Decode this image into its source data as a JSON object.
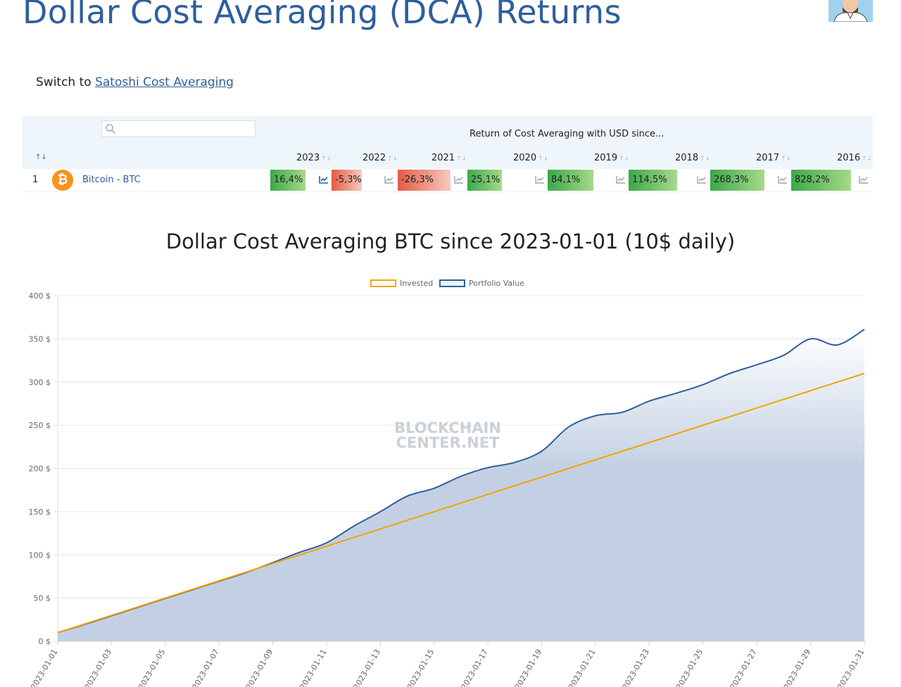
{
  "header": {
    "title": "Dollar Cost Averaging (DCA) Returns"
  },
  "switch": {
    "prefix": "Switch to",
    "link": "Satoshi Cost Averaging"
  },
  "table": {
    "search_value": "",
    "caption": "Return of Cost Averaging with USD since...",
    "rank_sort": "↑↓",
    "years": [
      "2023",
      "2022",
      "2021",
      "2020",
      "2019",
      "2018",
      "2017",
      "2016"
    ],
    "sort_arrows": "↑↓",
    "row": {
      "rank": "1",
      "coin_symbol": "₿",
      "name": "Bitcoin - BTC",
      "returns": [
        "16,4%",
        "-5,3%",
        "-26,3%",
        "25,1%",
        "84,1%",
        "114,5%",
        "268,3%",
        "828,2%"
      ],
      "return_values": [
        16.4,
        -5.3,
        -26.3,
        25.1,
        84.1,
        114.5,
        268.3,
        828.2
      ],
      "positive_color": "#3aa84a",
      "negative_color": "#e35b45"
    }
  },
  "chart_data": {
    "type": "line",
    "title": "Dollar Cost Averaging BTC since 2023-01-01 (10$ daily)",
    "watermark": [
      "BLOCKCHAIN",
      "CENTER.NET"
    ],
    "x": [
      "2023-01-01",
      "2023-01-02",
      "2023-01-03",
      "2023-01-04",
      "2023-01-05",
      "2023-01-06",
      "2023-01-07",
      "2023-01-08",
      "2023-01-09",
      "2023-01-10",
      "2023-01-11",
      "2023-01-12",
      "2023-01-13",
      "2023-01-14",
      "2023-01-15",
      "2023-01-16",
      "2023-01-17",
      "2023-01-18",
      "2023-01-19",
      "2023-01-20",
      "2023-01-21",
      "2023-01-22",
      "2023-01-23",
      "2023-01-24",
      "2023-01-25",
      "2023-01-26",
      "2023-01-27",
      "2023-01-28",
      "2023-01-29",
      "2023-01-30",
      "2023-01-31"
    ],
    "xticks": [
      "2023-01-01",
      "2023-01-03",
      "2023-01-05",
      "2023-01-07",
      "2023-01-09",
      "2023-01-11",
      "2023-01-13",
      "2023-01-15",
      "2023-01-17",
      "2023-01-19",
      "2023-01-21",
      "2023-01-23",
      "2023-01-25",
      "2023-01-27",
      "2023-01-29",
      "2023-01-31"
    ],
    "series": [
      {
        "name": "Invested",
        "color": "#f0a500",
        "values": [
          10,
          20,
          30,
          40,
          50,
          60,
          70,
          80,
          90,
          100,
          110,
          120,
          130,
          140,
          150,
          160,
          170,
          180,
          190,
          200,
          210,
          220,
          230,
          240,
          250,
          260,
          270,
          280,
          290,
          300,
          310
        ]
      },
      {
        "name": "Portfolio Value",
        "color": "#2e5f9c",
        "fill": "#c3d0e3",
        "values": [
          10,
          19.5,
          29.5,
          39.5,
          49.5,
          59.5,
          69.5,
          79.5,
          91,
          103,
          114,
          133,
          150,
          168,
          177,
          191,
          201,
          207,
          220,
          248,
          261,
          265,
          278,
          287,
          297,
          310,
          320,
          331,
          350,
          343,
          361
        ]
      }
    ],
    "ylim": [
      0,
      400
    ],
    "yticks": [
      0,
      50,
      100,
      150,
      200,
      250,
      300,
      350,
      400
    ],
    "ytick_labels": [
      "0 $",
      "50 $",
      "100 $",
      "150 $",
      "200 $",
      "250 $",
      "300 $",
      "350 $",
      "400 $"
    ],
    "grid": true,
    "legend_position": "top-center"
  }
}
